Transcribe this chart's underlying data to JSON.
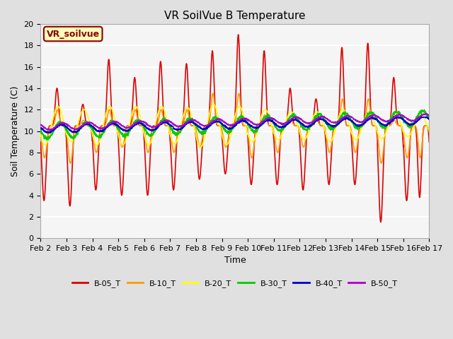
{
  "title": "VR SoilVue B Temperature",
  "xlabel": "Time",
  "ylabel": "Soil Temperature (C)",
  "ylim": [
    0,
    20
  ],
  "yticks": [
    0,
    2,
    4,
    6,
    8,
    10,
    12,
    14,
    16,
    18,
    20
  ],
  "xtick_labels": [
    "Feb 2",
    "Feb 3",
    "Feb 4",
    "Feb 5",
    "Feb 6",
    "Feb 7",
    "Feb 8",
    "Feb 9",
    "Feb 10",
    "Feb 11",
    "Feb 12",
    "Feb 13",
    "Feb 14",
    "Feb 15",
    "Feb 16",
    "Feb 17"
  ],
  "series_colors": {
    "B-05_T": "#dd0000",
    "B-10_T": "#ff9900",
    "B-20_T": "#ffff00",
    "B-30_T": "#00cc00",
    "B-40_T": "#0000cc",
    "B-50_T": "#aa00cc"
  },
  "watermark_text": "VR_soilvue",
  "watermark_dark_color": "#8B0000",
  "watermark_bg": "#ffffbb",
  "fig_bg_color": "#e0e0e0",
  "plot_bg_color": "#f5f5f5",
  "grid_color": "#cccccc",
  "title_fontsize": 11,
  "axis_label_fontsize": 9,
  "tick_fontsize": 8,
  "legend_fontsize": 8
}
